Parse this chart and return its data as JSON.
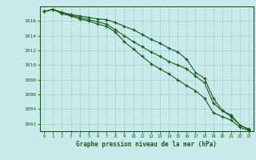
{
  "xlabel": "Graphe pression niveau de la mer (hPa)",
  "background_color": "#c8eaea",
  "grid_color": "#a8cece",
  "line_color": "#1a5c1a",
  "text_color": "#1a5c1a",
  "xlim": [
    -0.5,
    23.5
  ],
  "ylim": [
    1001.0,
    1018.0
  ],
  "yticks": [
    1002,
    1004,
    1006,
    1008,
    1010,
    1012,
    1014,
    1016
  ],
  "xticks": [
    0,
    1,
    2,
    3,
    4,
    5,
    6,
    7,
    8,
    9,
    10,
    11,
    12,
    13,
    14,
    15,
    16,
    17,
    18,
    19,
    20,
    21,
    22,
    23
  ],
  "series": [
    [
      1017.3,
      1017.6,
      1017.2,
      1016.9,
      1016.7,
      1016.5,
      1016.3,
      1016.2,
      1015.8,
      1015.3,
      1014.8,
      1014.2,
      1013.5,
      1013.0,
      1012.3,
      1011.8,
      1010.8,
      1009.0,
      1008.2,
      1005.5,
      1003.8,
      1003.2,
      1001.8,
      1001.2
    ],
    [
      1017.3,
      1017.6,
      1017.1,
      1016.8,
      1016.5,
      1016.2,
      1015.9,
      1015.6,
      1014.8,
      1014.0,
      1013.2,
      1012.5,
      1011.8,
      1011.2,
      1010.5,
      1010.0,
      1009.5,
      1008.5,
      1007.6,
      1004.8,
      1003.8,
      1003.0,
      1001.8,
      1001.3
    ],
    [
      1017.3,
      1017.6,
      1017.0,
      1016.7,
      1016.3,
      1016.0,
      1015.6,
      1015.3,
      1014.5,
      1013.2,
      1012.2,
      1011.2,
      1010.2,
      1009.5,
      1008.8,
      1008.0,
      1007.2,
      1006.5,
      1005.5,
      1003.5,
      1003.0,
      1002.5,
      1001.5,
      1001.1
    ]
  ]
}
